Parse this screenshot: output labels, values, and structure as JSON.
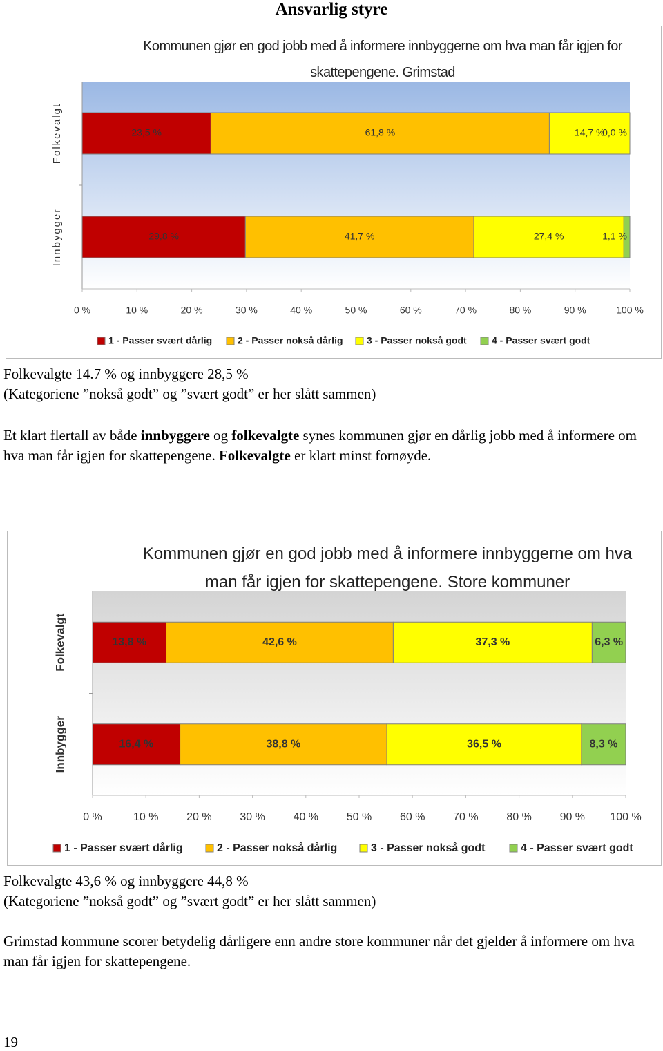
{
  "heading": "Ansvarlig styre",
  "chart_data": [
    {
      "type": "stacked-bar-horizontal",
      "title": "Kommunen gjør en god jobb med å informere innbyggerne om hva man får igjen for skattepengene. Grimstad",
      "categories": [
        "Folkevalgt",
        "Innbygger"
      ],
      "series": [
        {
          "name": "1 - Passer svært dårlig",
          "color": "#c00000",
          "values": [
            23.5,
            29.8
          ],
          "value_labels": [
            "23,5 %",
            "29,8 %"
          ]
        },
        {
          "name": "2 - Passer nokså dårlig",
          "color": "#ffc000",
          "values": [
            61.8,
            41.7
          ],
          "value_labels": [
            "61,8 %",
            "41,7 %"
          ]
        },
        {
          "name": "3 - Passer nokså godt",
          "color": "#ffff00",
          "values": [
            14.7,
            27.4
          ],
          "value_labels": [
            "14,7 %",
            "27,4 %"
          ]
        },
        {
          "name": "4 - Passer svært godt",
          "color": "#92d050",
          "values": [
            0.0,
            1.1
          ],
          "value_labels": [
            "0,0 %",
            "1,1 %"
          ]
        }
      ],
      "xlim": [
        0,
        100
      ],
      "xticks": [
        {
          "value": 0,
          "label": "0 %"
        },
        {
          "value": 10,
          "label": "10 %"
        },
        {
          "value": 20,
          "label": "20 %"
        },
        {
          "value": 30,
          "label": "30 %"
        },
        {
          "value": 40,
          "label": "40 %"
        },
        {
          "value": 50,
          "label": "50 %"
        },
        {
          "value": 60,
          "label": "60 %"
        },
        {
          "value": 70,
          "label": "70 %"
        },
        {
          "value": 80,
          "label": "80 %"
        },
        {
          "value": 90,
          "label": "90 %"
        },
        {
          "value": 100,
          "label": "100 %"
        }
      ],
      "legend": "bottom",
      "grid": false
    },
    {
      "type": "stacked-bar-horizontal",
      "title": "Kommunen gjør en god jobb med å informere innbyggerne om hva man får igjen for skattepengene. Store kommuner",
      "categories": [
        "Folkevalgt",
        "Innbygger"
      ],
      "series": [
        {
          "name": "1 - Passer svært dårlig",
          "color": "#c00000",
          "values": [
            13.8,
            16.4
          ],
          "value_labels": [
            "13,8 %",
            "16,4 %"
          ]
        },
        {
          "name": "2 - Passer nokså dårlig",
          "color": "#ffc000",
          "values": [
            42.6,
            38.8
          ],
          "value_labels": [
            "42,6 %",
            "38,8 %"
          ]
        },
        {
          "name": "3 - Passer nokså godt",
          "color": "#ffff00",
          "values": [
            37.3,
            36.5
          ],
          "value_labels": [
            "37,3 %",
            "36,5 %"
          ]
        },
        {
          "name": "4 - Passer svært godt",
          "color": "#92d050",
          "values": [
            6.3,
            8.3
          ],
          "value_labels": [
            "6,3 %",
            "8,3 %"
          ]
        }
      ],
      "xlim": [
        0,
        100
      ],
      "xticks": [
        {
          "value": 0,
          "label": "0 %"
        },
        {
          "value": 10,
          "label": "10 %"
        },
        {
          "value": 20,
          "label": "20 %"
        },
        {
          "value": 30,
          "label": "30 %"
        },
        {
          "value": 40,
          "label": "40 %"
        },
        {
          "value": 50,
          "label": "50 %"
        },
        {
          "value": 60,
          "label": "60 %"
        },
        {
          "value": 70,
          "label": "70 %"
        },
        {
          "value": 80,
          "label": "80 %"
        },
        {
          "value": 90,
          "label": "90 %"
        },
        {
          "value": 100,
          "label": "100 %"
        }
      ],
      "legend": "bottom",
      "grid": false
    }
  ],
  "summary1": [
    "Folkevalgte 14.7 % og innbyggere 28,5 %",
    "(Kategoriene ”nokså godt” og ”svært godt” er her slått sammen)"
  ],
  "paragraph1": [
    "Et klart flertall av både ",
    "innbyggere",
    " og ",
    "folkevalgte",
    " synes kommunen gjør en dårlig jobb med å informere om hva man får igjen for skattepengene. ",
    "Folkevalgte",
    " er klart minst fornøyde."
  ],
  "summary2": [
    "Folkevalgte 43,6 % og innbyggere 44,8 %",
    "(Kategoriene ”nokså godt” og ”svært godt” er her slått sammen)"
  ],
  "paragraph2": "Grimstad kommune scorer betydelig dårligere enn andre store kommuner når det gjelder å informere om hva man får igjen for skattepengene.",
  "page_number": "19"
}
